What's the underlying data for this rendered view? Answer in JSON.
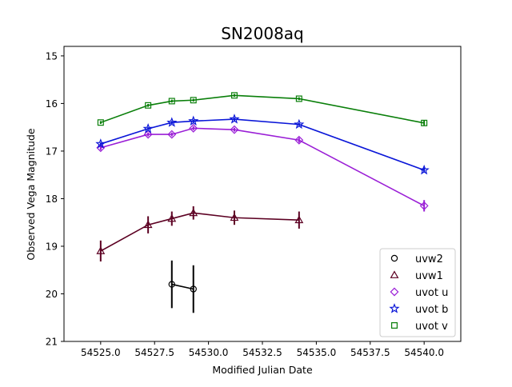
{
  "chart_data": {
    "type": "line",
    "title": "SN2008aq",
    "xlabel": "Modified Julian Date",
    "ylabel": "Observed Vega Magnitude",
    "xlim": [
      54523.3,
      54541.7
    ],
    "ylim": [
      21,
      14.8
    ],
    "y_inverted": true,
    "xticks": [
      54525.0,
      54527.5,
      54530.0,
      54532.5,
      54535.0,
      54537.5,
      54540.0
    ],
    "xtick_labels": [
      "54525.0",
      "54527.5",
      "54530.0",
      "54532.5",
      "54535.0",
      "54537.5",
      "54540.0"
    ],
    "yticks": [
      15,
      16,
      17,
      18,
      19,
      20,
      21
    ],
    "ytick_labels": [
      "15",
      "16",
      "17",
      "18",
      "19",
      "20",
      "21"
    ],
    "legend_position": "lower-right",
    "grid": false,
    "series": [
      {
        "name": "uvw2",
        "color": "#000000",
        "marker": "circle",
        "points": [
          {
            "x": 54528.3,
            "y": 19.8,
            "err": 0.5
          },
          {
            "x": 54529.3,
            "y": 19.9,
            "err": 0.5
          }
        ]
      },
      {
        "name": "uvw1",
        "color": "#5c0022",
        "marker": "triangle",
        "points": [
          {
            "x": 54525.0,
            "y": 19.1,
            "err": 0.22
          },
          {
            "x": 54527.2,
            "y": 18.55,
            "err": 0.18
          },
          {
            "x": 54528.3,
            "y": 18.42,
            "err": 0.15
          },
          {
            "x": 54529.3,
            "y": 18.3,
            "err": 0.14
          },
          {
            "x": 54531.2,
            "y": 18.4,
            "err": 0.15
          },
          {
            "x": 54534.2,
            "y": 18.45,
            "err": 0.18
          }
        ]
      },
      {
        "name": "uvot u",
        "color": "#9a1ed6",
        "marker": "diamond",
        "points": [
          {
            "x": 54525.0,
            "y": 16.93,
            "err": 0.05
          },
          {
            "x": 54527.2,
            "y": 16.65,
            "err": 0.04
          },
          {
            "x": 54528.3,
            "y": 16.65,
            "err": 0.04
          },
          {
            "x": 54529.3,
            "y": 16.52,
            "err": 0.04
          },
          {
            "x": 54531.2,
            "y": 16.55,
            "err": 0.04
          },
          {
            "x": 54534.2,
            "y": 16.77,
            "err": 0.05
          },
          {
            "x": 54540.0,
            "y": 18.15,
            "err": 0.12
          }
        ]
      },
      {
        "name": "uvot b",
        "color": "#0a16d8",
        "marker": "star",
        "points": [
          {
            "x": 54525.0,
            "y": 16.85,
            "err": 0.03
          },
          {
            "x": 54527.2,
            "y": 16.53,
            "err": 0.03
          },
          {
            "x": 54528.3,
            "y": 16.4,
            "err": 0.03
          },
          {
            "x": 54529.3,
            "y": 16.37,
            "err": 0.03
          },
          {
            "x": 54531.2,
            "y": 16.33,
            "err": 0.03
          },
          {
            "x": 54534.2,
            "y": 16.44,
            "err": 0.03
          },
          {
            "x": 54540.0,
            "y": 17.4,
            "err": 0.05
          }
        ]
      },
      {
        "name": "uvot v",
        "color": "#0a7f0a",
        "marker": "square",
        "points": [
          {
            "x": 54525.0,
            "y": 16.4,
            "err": 0.03
          },
          {
            "x": 54527.2,
            "y": 16.04,
            "err": 0.03
          },
          {
            "x": 54528.3,
            "y": 15.95,
            "err": 0.03
          },
          {
            "x": 54529.3,
            "y": 15.93,
            "err": 0.03
          },
          {
            "x": 54531.2,
            "y": 15.83,
            "err": 0.03
          },
          {
            "x": 54534.2,
            "y": 15.9,
            "err": 0.03
          },
          {
            "x": 54540.0,
            "y": 16.41,
            "err": 0.05
          }
        ]
      }
    ]
  }
}
